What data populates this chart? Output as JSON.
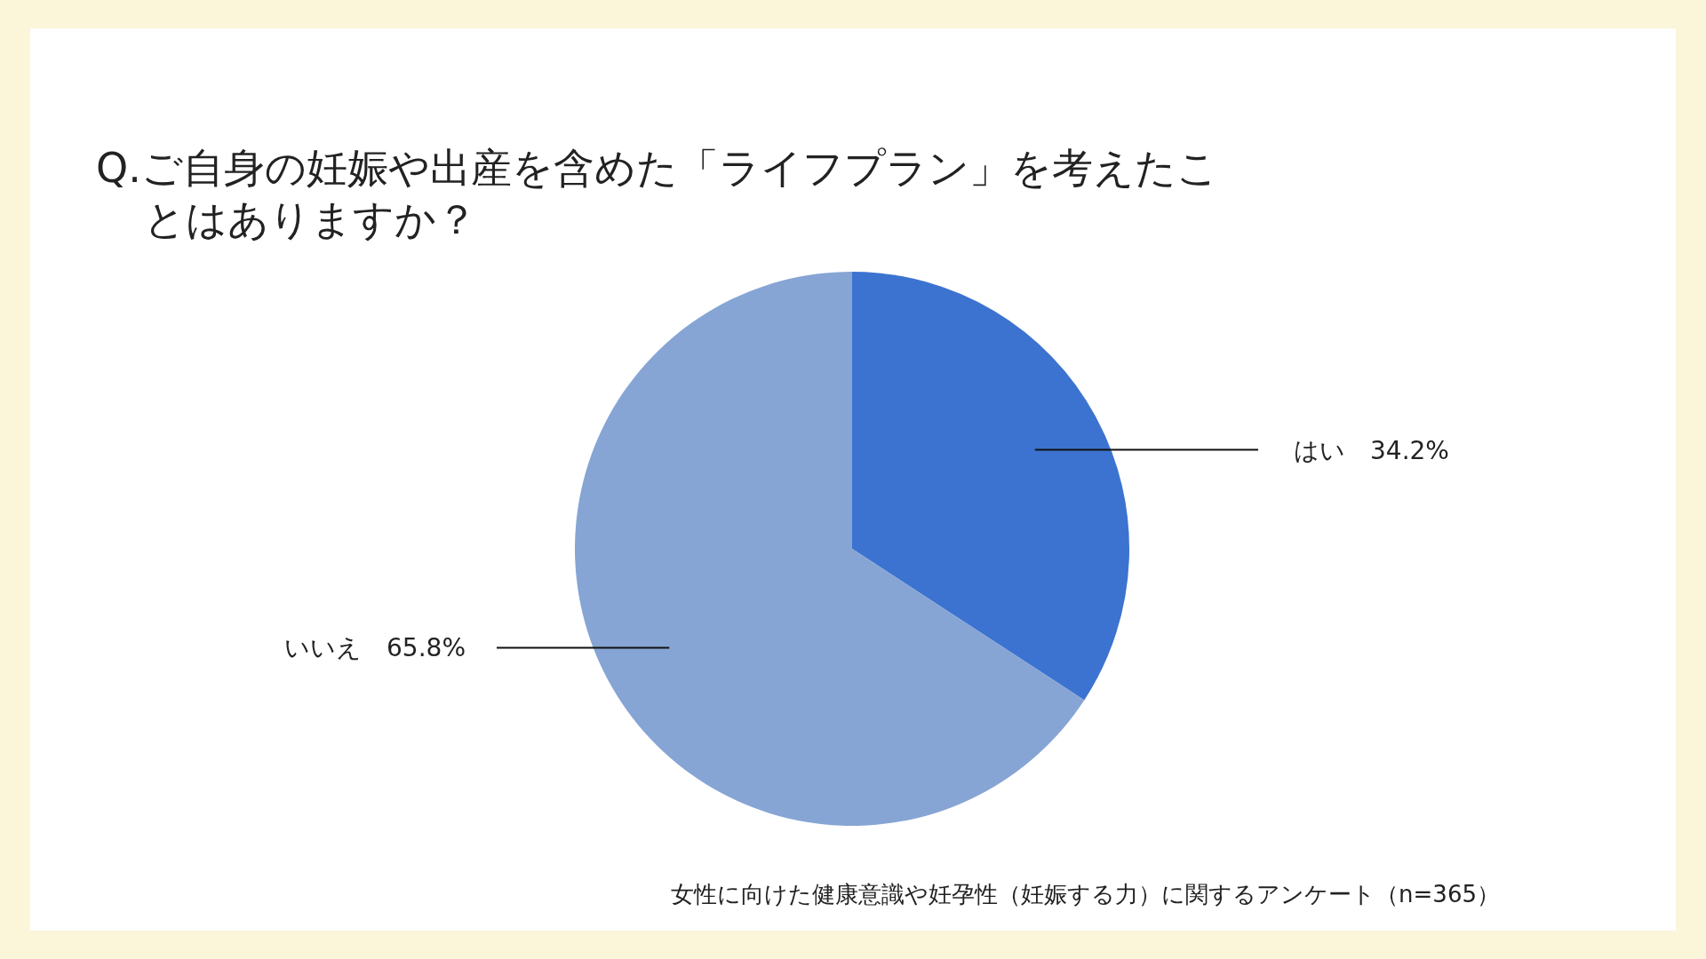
{
  "chart_data": {
    "type": "pie",
    "title": "Q.ご自身の妊娠や出産を含めた「ライフプラン」を考えたことはありますか？",
    "categories": [
      "はい",
      "いいえ"
    ],
    "values": [
      34.2,
      65.8
    ],
    "value_labels": [
      "34.2%",
      "65.8%"
    ],
    "colors": [
      "#3c73d0",
      "#86a5d4"
    ],
    "annotations": [
      "女性に向けた健康意識や妊孕性（妊娠する力）に関するアンケート（n=365）"
    ]
  }
}
